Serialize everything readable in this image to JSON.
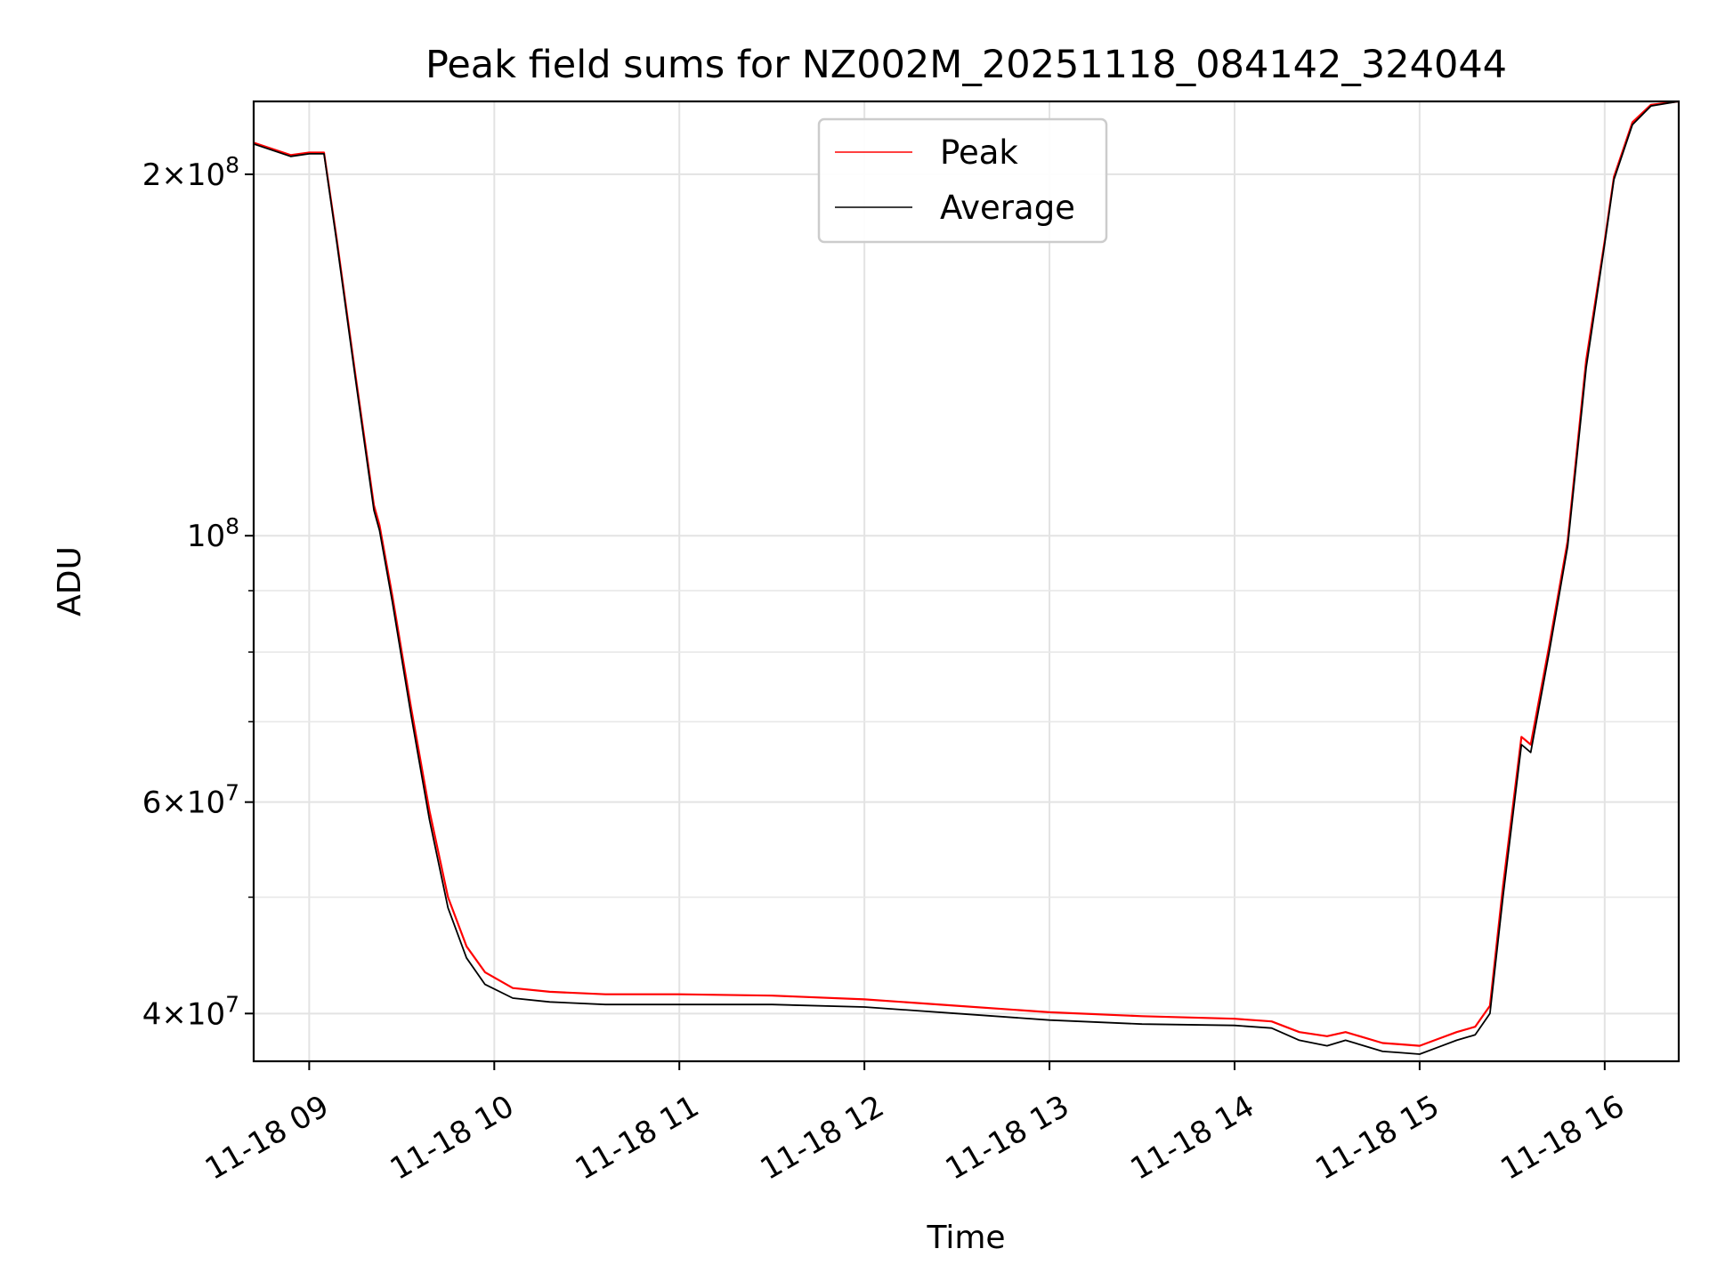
{
  "chart_data": {
    "type": "line",
    "title": "Peak field sums for NZ002M_20251118_084142_324044",
    "xlabel": "Time",
    "ylabel": "ADU",
    "yscale": "log",
    "xlim": [
      8.7,
      16.4
    ],
    "ylim": [
      36500000,
      230000000
    ],
    "x_ticks": [
      {
        "value": 9,
        "label": "11-18 09"
      },
      {
        "value": 10,
        "label": "11-18 10"
      },
      {
        "value": 11,
        "label": "11-18 11"
      },
      {
        "value": 12,
        "label": "11-18 12"
      },
      {
        "value": 13,
        "label": "11-18 13"
      },
      {
        "value": 14,
        "label": "11-18 14"
      },
      {
        "value": 15,
        "label": "11-18 15"
      },
      {
        "value": 16,
        "label": "11-18 16"
      }
    ],
    "y_major_ticks": [
      {
        "value": 40000000,
        "label_mantissa": "4",
        "label_base": "10",
        "label_exp": "7"
      },
      {
        "value": 60000000,
        "label_mantissa": "6",
        "label_base": "10",
        "label_exp": "7"
      },
      {
        "value": 100000000,
        "label_mantissa": "",
        "label_base": "10",
        "label_exp": "8"
      },
      {
        "value": 200000000,
        "label_mantissa": "2",
        "label_base": "10",
        "label_exp": "8"
      }
    ],
    "y_times_sign": "×",
    "y_minor_gridlines": [
      50000000,
      70000000,
      80000000,
      90000000
    ],
    "grid": true,
    "legend": {
      "position": "top-center",
      "entries": [
        {
          "label": "Peak",
          "color": "#ff0000"
        },
        {
          "label": "Average",
          "color": "#000000"
        }
      ]
    },
    "series": [
      {
        "name": "Average",
        "color": "#000000",
        "x": [
          8.7,
          8.9,
          9.0,
          9.08,
          9.15,
          9.25,
          9.35,
          9.38,
          9.45,
          9.55,
          9.65,
          9.75,
          9.85,
          9.95,
          10.1,
          10.3,
          10.6,
          11.0,
          11.5,
          12.0,
          12.5,
          13.0,
          13.5,
          14.0,
          14.2,
          14.35,
          14.5,
          14.6,
          14.7,
          14.8,
          14.9,
          15.0,
          15.1,
          15.2,
          15.3,
          15.38,
          15.45,
          15.55,
          15.6,
          15.7,
          15.8,
          15.9,
          16.0,
          16.05,
          16.15,
          16.25,
          16.4
        ],
        "y": [
          212000000,
          207000000,
          208000000,
          208000000,
          175000000,
          135000000,
          105000000,
          101000000,
          88000000,
          71000000,
          58000000,
          49000000,
          44500000,
          42300000,
          41200000,
          40900000,
          40700000,
          40700000,
          40700000,
          40500000,
          40000000,
          39500000,
          39200000,
          39100000,
          38900000,
          38000000,
          37600000,
          38000000,
          37600000,
          37200000,
          37100000,
          37000000,
          37500000,
          38000000,
          38400000,
          40000000,
          50000000,
          67000000,
          66000000,
          80000000,
          98000000,
          138000000,
          175000000,
          198000000,
          220000000,
          228000000,
          230000000
        ]
      },
      {
        "name": "Peak",
        "color": "#ff0000",
        "x": [
          8.7,
          8.9,
          9.0,
          9.08,
          9.15,
          9.25,
          9.35,
          9.38,
          9.45,
          9.55,
          9.65,
          9.75,
          9.85,
          9.95,
          10.1,
          10.3,
          10.6,
          11.0,
          11.5,
          12.0,
          12.5,
          13.0,
          13.5,
          14.0,
          14.2,
          14.35,
          14.5,
          14.6,
          14.7,
          14.8,
          14.9,
          15.0,
          15.1,
          15.2,
          15.3,
          15.38,
          15.45,
          15.55,
          15.6,
          15.7,
          15.8,
          15.9,
          16.0,
          16.05,
          16.15,
          16.25,
          16.4
        ],
        "y": [
          212500000,
          207500000,
          208500000,
          208500000,
          176000000,
          136000000,
          106000000,
          102000000,
          89000000,
          72000000,
          59000000,
          50000000,
          45500000,
          43300000,
          42000000,
          41700000,
          41500000,
          41500000,
          41400000,
          41100000,
          40600000,
          40100000,
          39800000,
          39600000,
          39400000,
          38600000,
          38300000,
          38600000,
          38200000,
          37800000,
          37700000,
          37600000,
          38100000,
          38600000,
          39000000,
          40600000,
          51000000,
          68000000,
          67000000,
          81000000,
          99000000,
          140000000,
          176000000,
          199000000,
          221000000,
          228500000,
          230000000
        ]
      }
    ]
  }
}
